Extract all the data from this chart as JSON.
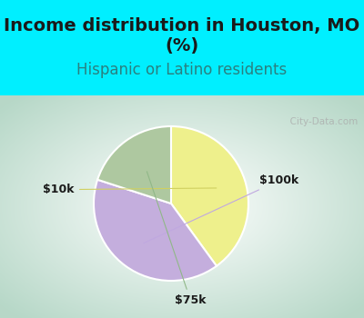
{
  "title": "Income distribution in Houston, MO\n(%)",
  "subtitle": "Hispanic or Latino residents",
  "title_color": "#1a1a1a",
  "subtitle_color": "#2a8080",
  "title_bg_color": "#00efff",
  "chart_bg_color_center": "#f0faf5",
  "chart_bg_color_edge": "#b8d8c8",
  "slices": [
    {
      "label": "$10k",
      "value": 40,
      "color": "#eef08c"
    },
    {
      "label": "$100k",
      "value": 40,
      "color": "#c4aedd"
    },
    {
      "label": "$75k",
      "value": 20,
      "color": "#aec8a0"
    }
  ],
  "label_fontsize": 9,
  "label_color": "#1a1a1a",
  "watermark": "  City-Data.com",
  "watermark_color": "#aaaaaa",
  "title_fontsize": 14,
  "subtitle_fontsize": 12,
  "start_angle": 90,
  "counterclock": false
}
